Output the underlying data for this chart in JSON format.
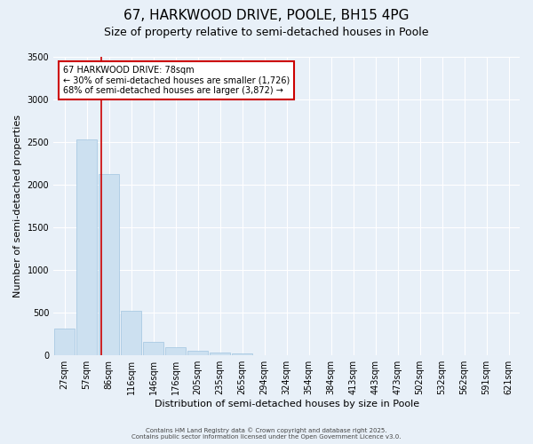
{
  "title_line1": "67, HARKWOOD DRIVE, POOLE, BH15 4PG",
  "title_line2": "Size of property relative to semi-detached houses in Poole",
  "xlabel": "Distribution of semi-detached houses by size in Poole",
  "ylabel": "Number of semi-detached properties",
  "bins": [
    "27sqm",
    "57sqm",
    "86sqm",
    "116sqm",
    "146sqm",
    "176sqm",
    "205sqm",
    "235sqm",
    "265sqm",
    "294sqm",
    "324sqm",
    "354sqm",
    "384sqm",
    "413sqm",
    "443sqm",
    "473sqm",
    "502sqm",
    "532sqm",
    "562sqm",
    "591sqm",
    "621sqm"
  ],
  "values": [
    310,
    2530,
    2130,
    520,
    160,
    100,
    50,
    30,
    20,
    5,
    3,
    2,
    1,
    1,
    0,
    0,
    0,
    0,
    0,
    0,
    0
  ],
  "bar_color": "#cce0f0",
  "bar_edgecolor": "#a0c4e0",
  "red_line_color": "#cc0000",
  "ylim": [
    0,
    3500
  ],
  "yticks": [
    0,
    500,
    1000,
    1500,
    2000,
    2500,
    3000,
    3500
  ],
  "annotation_title": "67 HARKWOOD DRIVE: 78sqm",
  "annotation_line1": "← 30% of semi-detached houses are smaller (1,726)",
  "annotation_line2": "68% of semi-detached houses are larger (3,872) →",
  "annotation_box_color": "#ffffff",
  "annotation_box_edgecolor": "#cc0000",
  "bg_color": "#e8f0f8",
  "footer1": "Contains HM Land Registry data © Crown copyright and database right 2025.",
  "footer2": "Contains public sector information licensed under the Open Government Licence v3.0.",
  "title_fontsize": 11,
  "subtitle_fontsize": 9,
  "ylabel_fontsize": 8,
  "xlabel_fontsize": 8,
  "tick_fontsize": 7,
  "annot_fontsize": 7,
  "footer_fontsize": 5
}
